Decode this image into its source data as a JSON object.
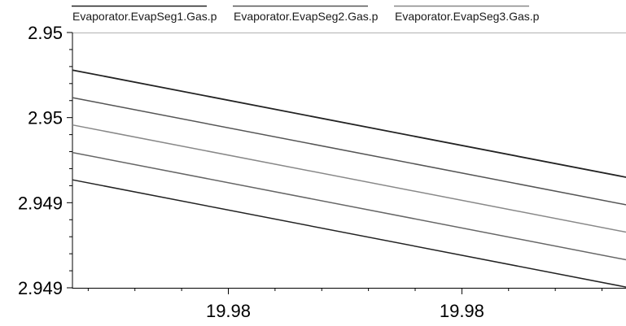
{
  "chart_data": {
    "type": "line",
    "title": "",
    "xlabel": "",
    "ylabel": "",
    "x_tick_labels": [
      "19.98",
      "19.98"
    ],
    "y_tick_labels": [
      "2.95",
      "2.95",
      "2.949",
      "2.949"
    ],
    "legend_position": "top",
    "xlim": [
      0,
      1
    ],
    "ylim": [
      0,
      1
    ],
    "series": [
      {
        "name": "Evaporator.EvapSeg1.Gas.p",
        "color": "#222222",
        "x": [
          0,
          1
        ],
        "y": [
          0.853,
          0.433
        ]
      },
      {
        "name": "Evaporator.EvapSeg2.Gas.p",
        "color": "#555555",
        "x": [
          0,
          1
        ],
        "y": [
          0.745,
          0.325
        ]
      },
      {
        "name": "Evaporator.EvapSeg3.Gas.p",
        "color": "#888888",
        "x": [
          0,
          1
        ],
        "y": [
          0.638,
          0.218
        ]
      },
      {
        "name": "",
        "color": "#666666",
        "x": [
          0,
          1
        ],
        "y": [
          0.53,
          0.11
        ]
      },
      {
        "name": "",
        "color": "#222222",
        "x": [
          0,
          1
        ],
        "y": [
          0.423,
          0.003
        ]
      }
    ]
  }
}
